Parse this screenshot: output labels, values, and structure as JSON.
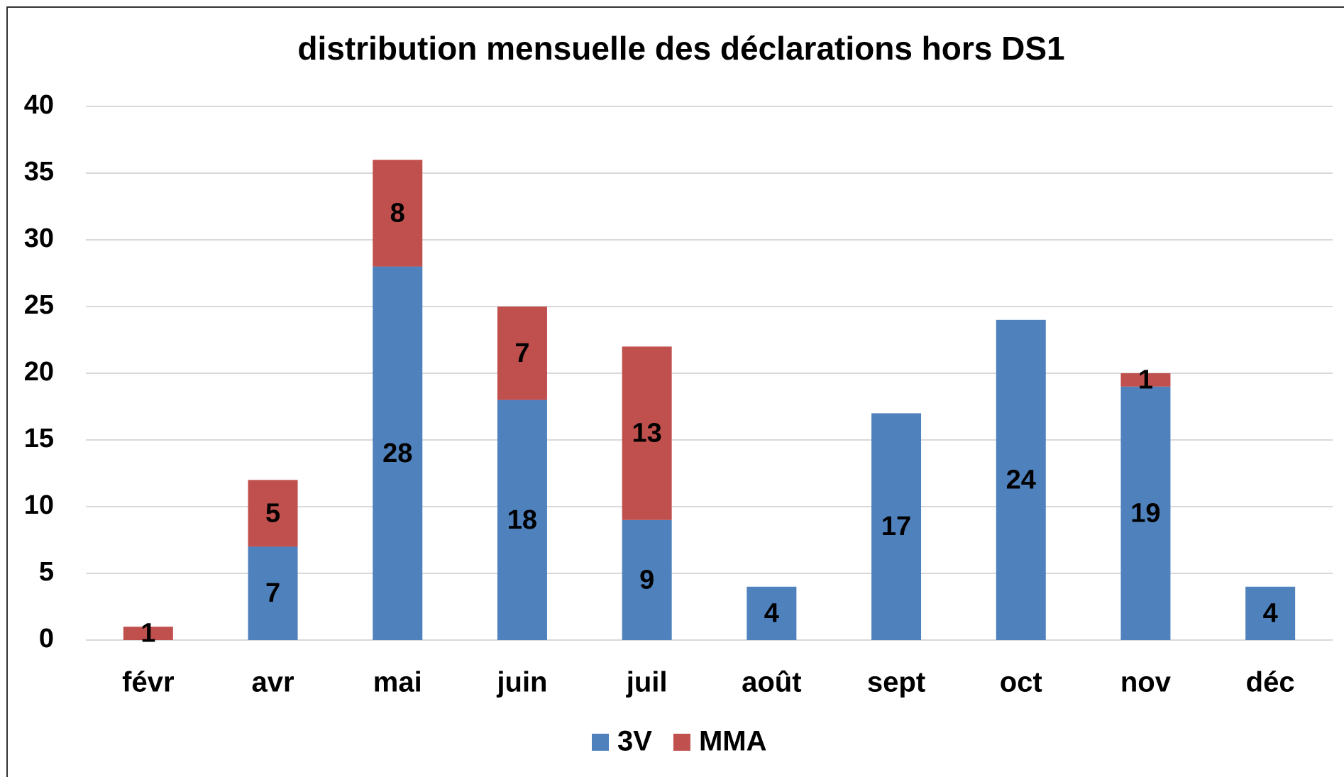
{
  "chart_data": {
    "type": "stacked_bar",
    "title": "distribution mensuelle des déclarations hors DS1",
    "categories": [
      "févr",
      "avr",
      "mai",
      "juin",
      "juil",
      "août",
      "sept",
      "oct",
      "nov",
      "déc"
    ],
    "series": [
      {
        "name": "3V",
        "color": "#4f81bd",
        "values": [
          null,
          7,
          28,
          18,
          9,
          4,
          17,
          24,
          19,
          4
        ]
      },
      {
        "name": "MMA",
        "color": "#c0504d",
        "values": [
          1,
          5,
          8,
          7,
          13,
          null,
          null,
          null,
          1,
          null
        ]
      }
    ],
    "ylim": [
      0,
      40
    ],
    "yticks": [
      0,
      5,
      10,
      15,
      20,
      25,
      30,
      35,
      40
    ],
    "grid": true,
    "legend": "bottom"
  }
}
